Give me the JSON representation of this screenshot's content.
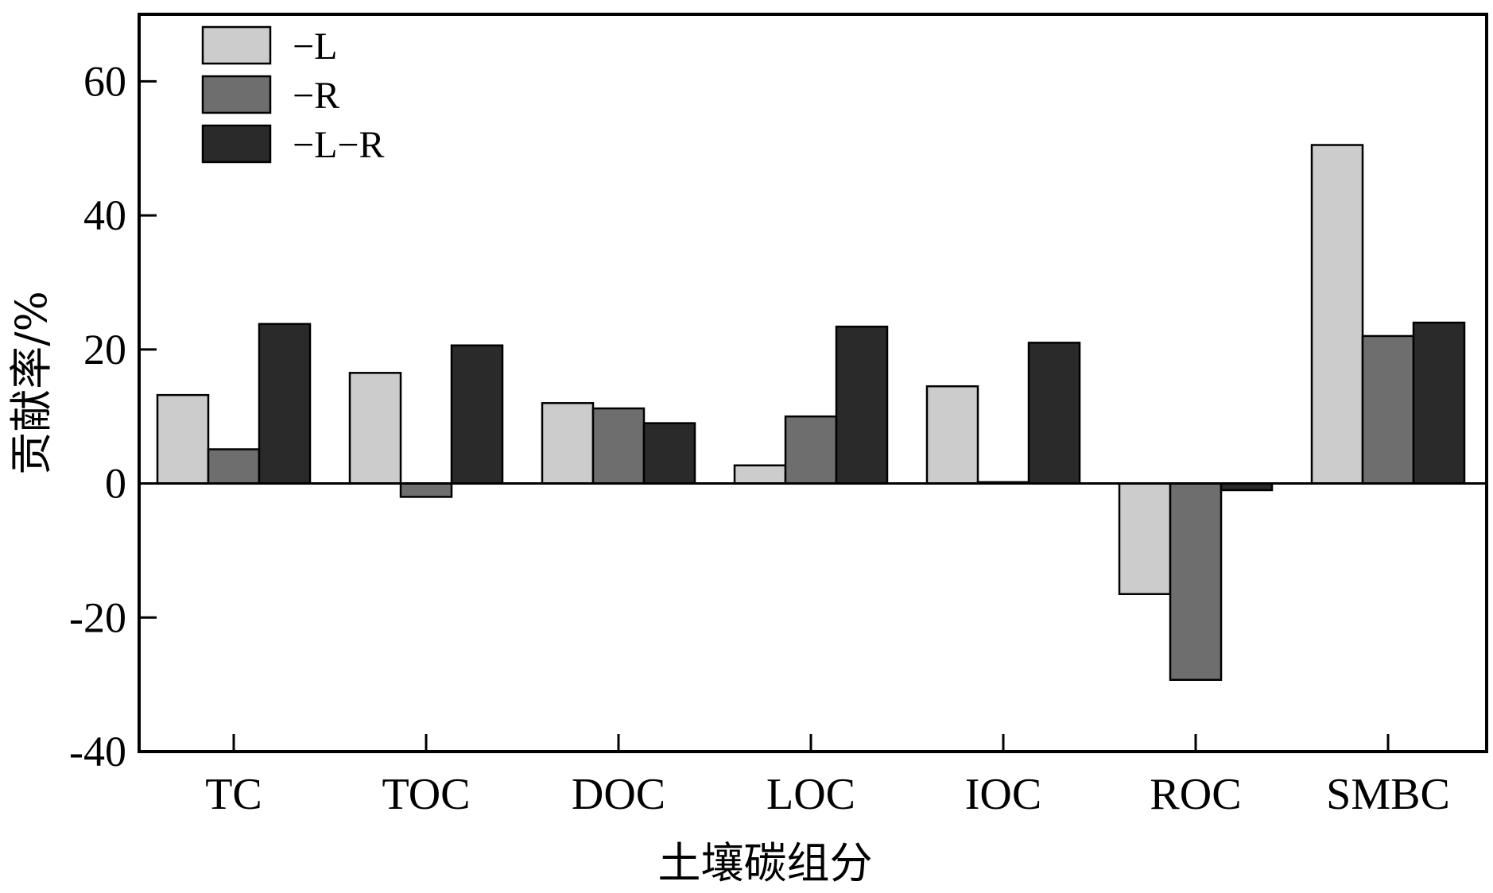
{
  "chart_data": {
    "type": "bar",
    "title": "",
    "xlabel": "土壤碳组分",
    "ylabel": "贡献率/%",
    "ylim": [
      -40,
      70
    ],
    "yticks": [
      -40,
      -20,
      0,
      20,
      40,
      60
    ],
    "ytick_labels": [
      "-40",
      "-20",
      "0",
      "20",
      "40",
      "60"
    ],
    "grid": false,
    "legend_position": "top-left",
    "categories": [
      "TC",
      "TOC",
      "DOC",
      "LOC",
      "IOC",
      "ROC",
      "SMBC"
    ],
    "series": [
      {
        "name": "−L",
        "color": "#cccccc",
        "values": [
          13.2,
          16.5,
          12.0,
          2.7,
          14.5,
          -16.5,
          50.5
        ]
      },
      {
        "name": "−R",
        "color": "#6e6e6e",
        "values": [
          5.1,
          -2.0,
          11.2,
          10.0,
          0.2,
          -29.3,
          22.0
        ]
      },
      {
        "name": "−L−R",
        "color": "#2a2a2a",
        "values": [
          23.8,
          20.6,
          9.0,
          23.4,
          21.0,
          -1.0,
          24.0
        ]
      }
    ]
  }
}
